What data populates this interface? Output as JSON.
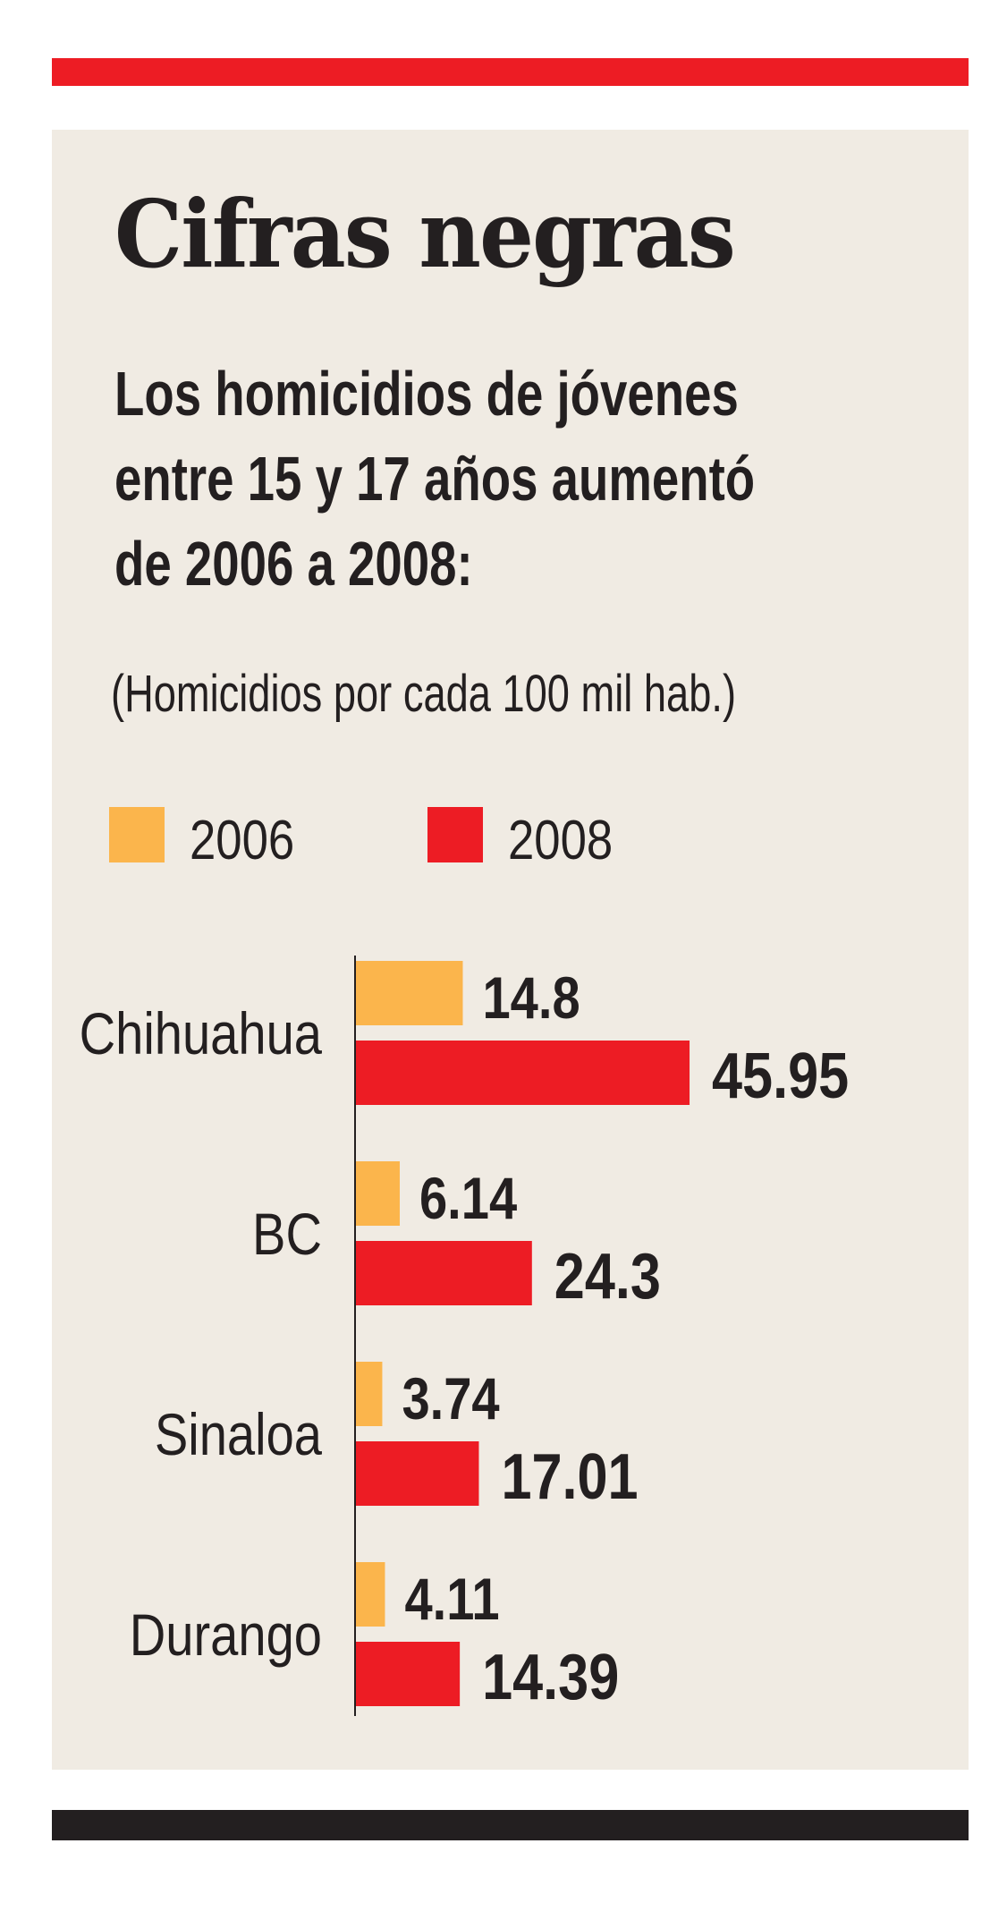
{
  "title": "Cifras negras",
  "subtitle_lines": [
    "Los homicidios de jóvenes",
    "entre 15 y 17 años aumentó",
    "de 2006 a 2008:"
  ],
  "unit_note": "(Homicidios por cada 100 mil hab.)",
  "colors": {
    "top_bar": "#ed1c24",
    "panel": "#f0ebe3",
    "bottom_bar": "#231f20",
    "series_2006": "#fbb54c",
    "series_2008": "#ed1c24"
  },
  "chart_data": {
    "type": "bar",
    "orientation": "horizontal",
    "categories": [
      "Chihuahua",
      "BC",
      "Sinaloa",
      "Durango"
    ],
    "series": [
      {
        "name": "2006",
        "values": [
          14.8,
          6.14,
          3.74,
          4.11
        ],
        "labels": [
          "14.8",
          "6.14",
          "3.74",
          "4.11"
        ],
        "color": "#fbb54c"
      },
      {
        "name": "2008",
        "values": [
          45.95,
          24.3,
          17.01,
          14.39
        ],
        "labels": [
          "45.95",
          "24.3",
          "17.01",
          "14.39"
        ],
        "color": "#ed1c24"
      }
    ],
    "legend": "top-left",
    "grid": false
  }
}
